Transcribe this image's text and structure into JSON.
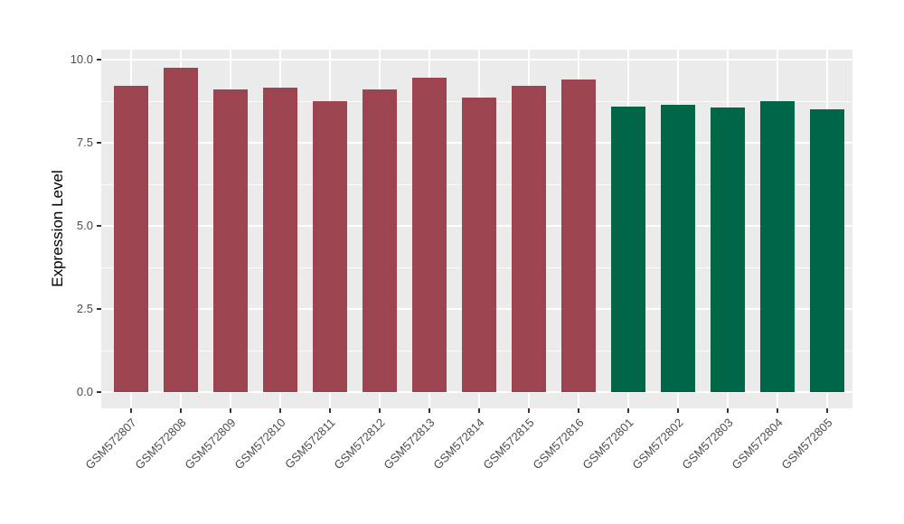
{
  "figure": {
    "background_color": "#FFFFFF",
    "panel_background_color": "#EBEBEB",
    "gridline_color": "#FFFFFF",
    "tick_mark_color": "#333333",
    "axis_text_color": "#4D4D4D",
    "axis_title_color": "#000000"
  },
  "chart_data": {
    "type": "bar",
    "title": "",
    "xlabel": "",
    "ylabel": "Expression Level",
    "categories": [
      "GSM572807",
      "GSM572808",
      "GSM572809",
      "GSM572810",
      "GSM572811",
      "GSM572812",
      "GSM572813",
      "GSM572814",
      "GSM572815",
      "GSM572816",
      "GSM572801",
      "GSM572802",
      "GSM572803",
      "GSM572804",
      "GSM572805"
    ],
    "values": [
      9.2,
      9.75,
      9.1,
      9.15,
      8.75,
      9.1,
      9.45,
      8.85,
      9.2,
      9.4,
      8.6,
      8.65,
      8.55,
      8.75,
      8.5
    ],
    "bar_colors": [
      "#9C4450",
      "#9C4450",
      "#9C4450",
      "#9C4450",
      "#9C4450",
      "#9C4450",
      "#9C4450",
      "#9C4450",
      "#9C4450",
      "#9C4450",
      "#006648",
      "#006648",
      "#006648",
      "#006648",
      "#006648"
    ],
    "color_groups": [
      {
        "color": "#9C4450",
        "categories": [
          "GSM572807",
          "GSM572808",
          "GSM572809",
          "GSM572810",
          "GSM572811",
          "GSM572812",
          "GSM572813",
          "GSM572814",
          "GSM572815",
          "GSM572816"
        ]
      },
      {
        "color": "#006648",
        "categories": [
          "GSM572801",
          "GSM572802",
          "GSM572803",
          "GSM572804",
          "GSM572805"
        ]
      }
    ],
    "ytick_values": [
      0,
      2.5,
      5,
      7.5,
      10
    ],
    "ytick_labels": [
      "0.0",
      "2.5",
      "5.0",
      "7.5",
      "10.0"
    ],
    "yminor_values": [
      1.25,
      3.75,
      6.25,
      8.75
    ],
    "ylim": [
      0,
      10.25
    ],
    "grid": "on",
    "legend": "none",
    "x_label_rotation_deg": 45
  }
}
